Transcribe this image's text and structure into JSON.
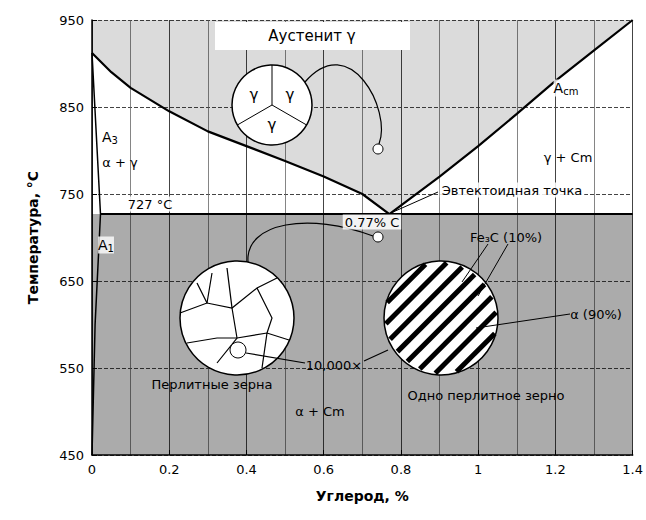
{
  "chart_data": {
    "type": "line",
    "x_label": "Углерод, %",
    "y_label": "Температура, °C",
    "xlim": [
      0,
      1.4
    ],
    "xticks": [
      0,
      0.2,
      0.4,
      0.6,
      0.8,
      1,
      1.2,
      1.4
    ],
    "ylim": [
      450,
      950
    ],
    "yticks": [
      450,
      550,
      650,
      750,
      850,
      950
    ],
    "grid": true,
    "series": [
      {
        "name": "A3",
        "color": "#000000",
        "x": [
          0,
          0.05,
          0.1,
          0.2,
          0.3,
          0.4,
          0.5,
          0.6,
          0.7,
          0.77
        ],
        "values": [
          912,
          890,
          872,
          845,
          822,
          805,
          788,
          770,
          750,
          727
        ]
      },
      {
        "name": "Acm",
        "color": "#000000",
        "x": [
          0.77,
          0.9,
          1.0,
          1.1,
          1.2,
          1.3,
          1.4
        ],
        "values": [
          727,
          770,
          805,
          842,
          880,
          915,
          950
        ]
      },
      {
        "name": "A1",
        "color": "#000000",
        "x": [
          0.022,
          1.4
        ],
        "values": [
          727,
          727
        ]
      },
      {
        "color": "#000000",
        "x": [
          0,
          0.022,
          0.008,
          0
        ],
        "values": [
          912,
          727,
          600,
          450
        ]
      }
    ],
    "annotations": [
      "Аустенит γ",
      "α + γ",
      "γ + Cm",
      "Эвтектоидная точка",
      "727 °C",
      "0.77% C",
      "Fe₃C (10%)",
      "α (90%)",
      "Перлитные зерна",
      "Одно перлитное зерно",
      "10,000×",
      "α + Cm"
    ],
    "grain_label": "γ"
  }
}
